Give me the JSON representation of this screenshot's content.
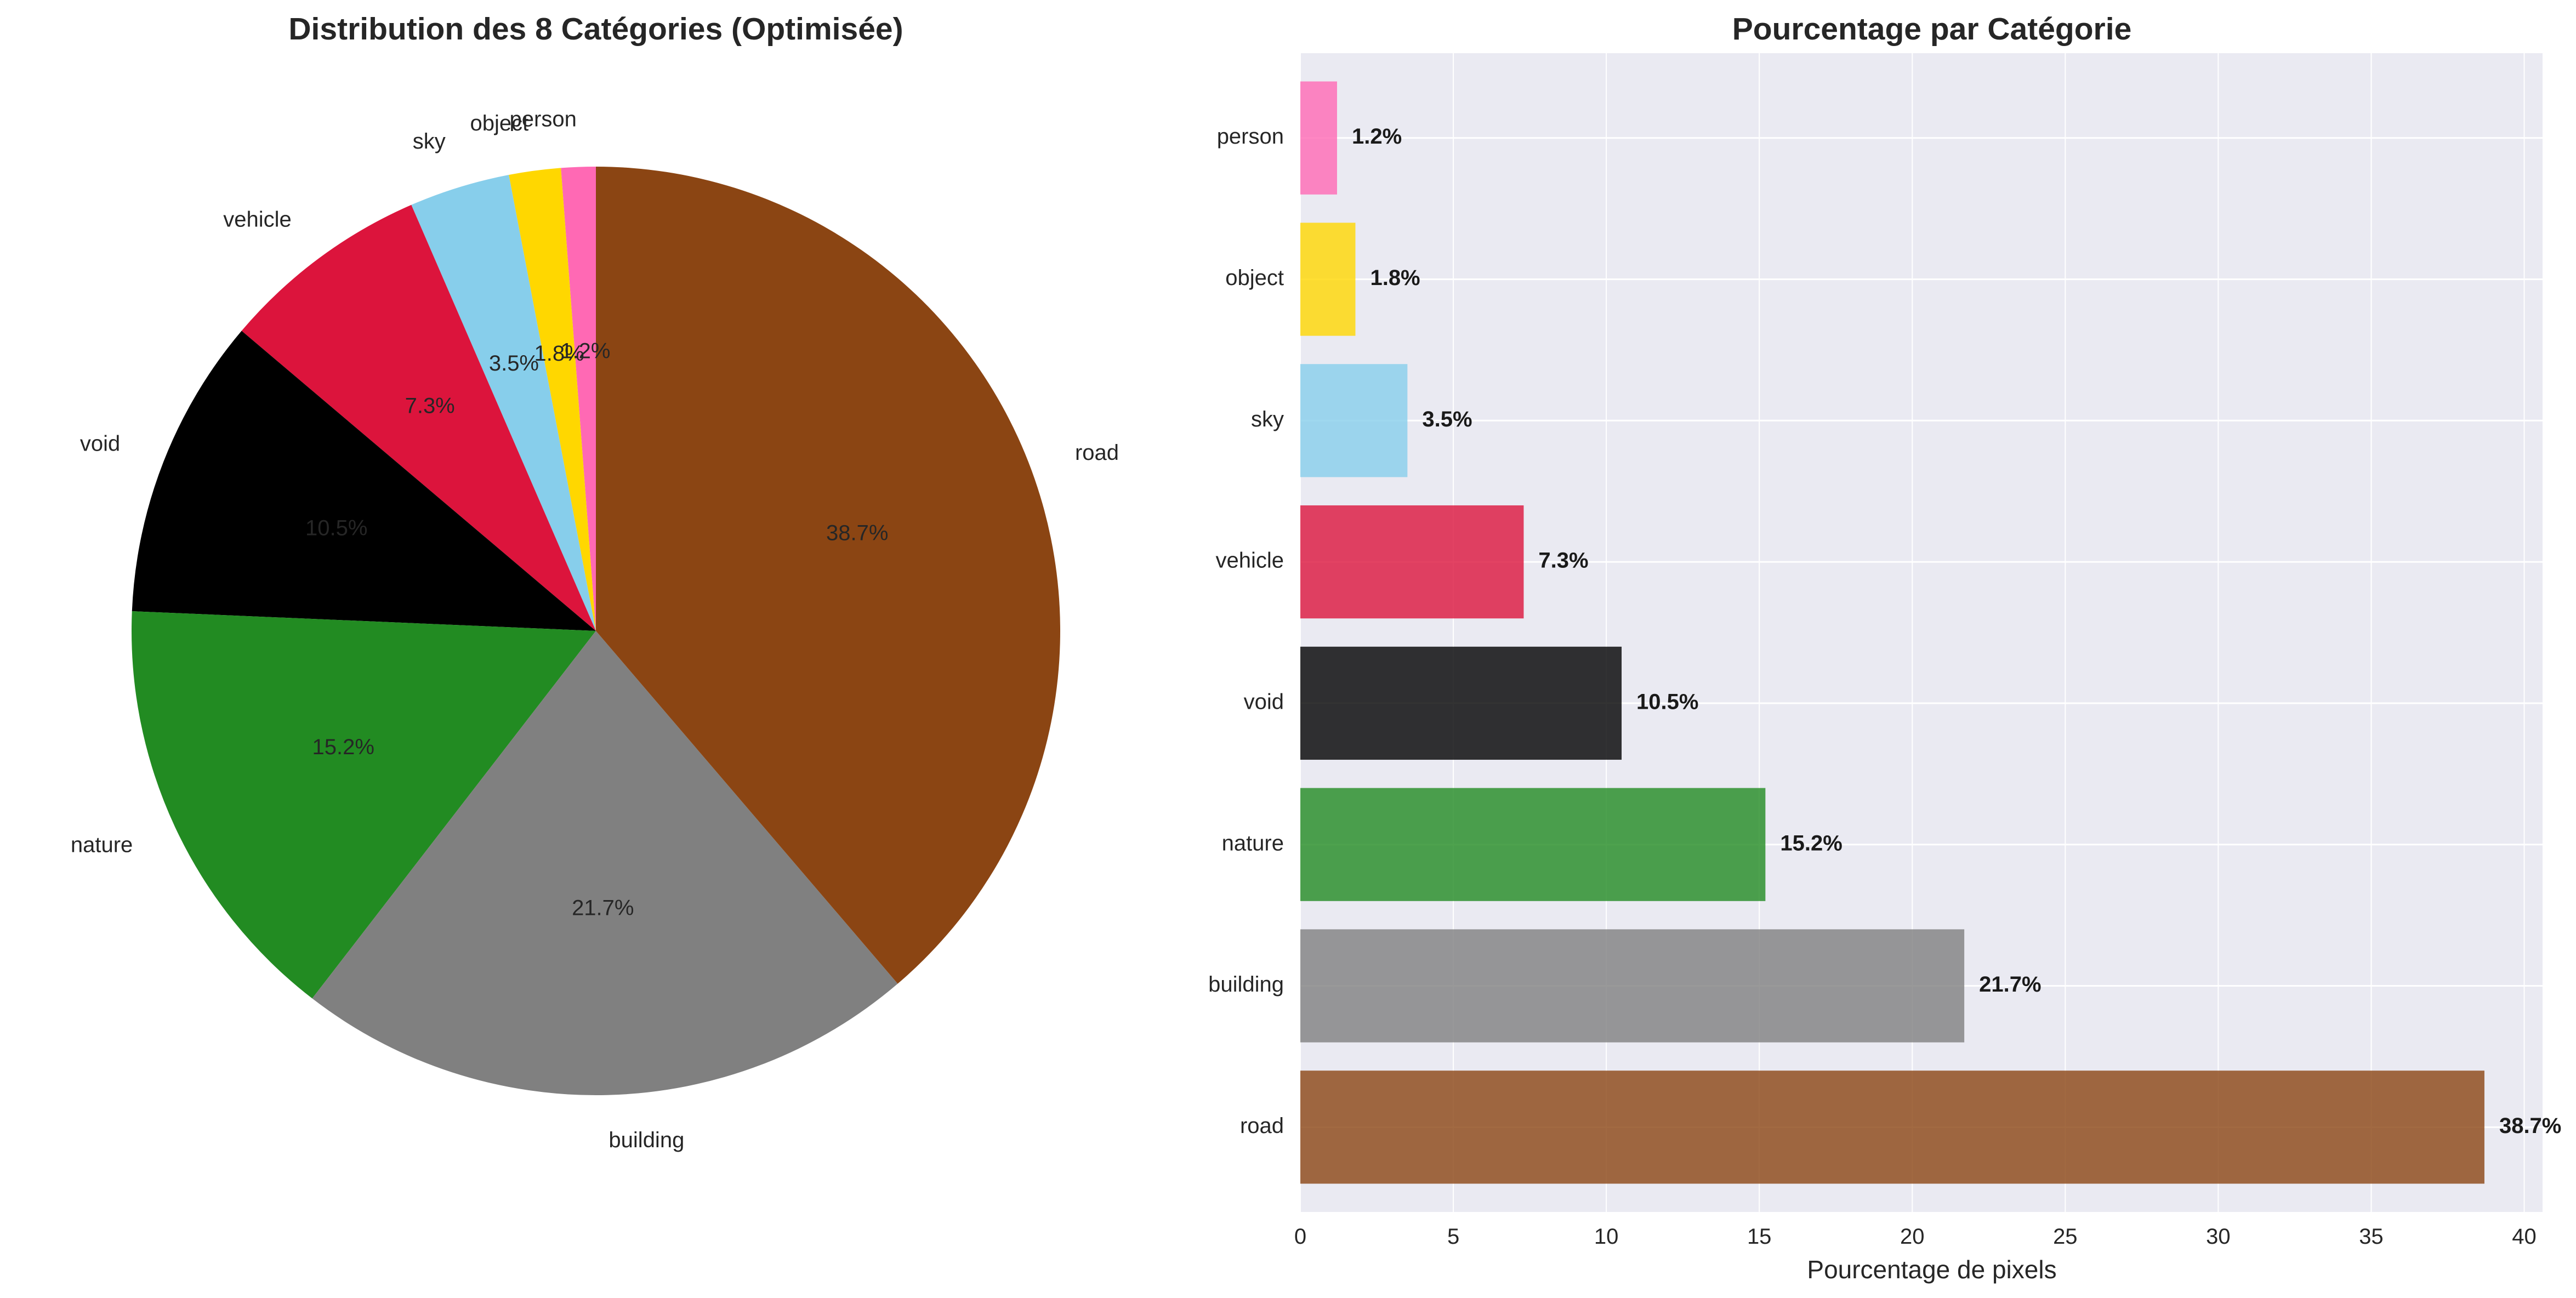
{
  "chart_data": [
    {
      "type": "pie",
      "title": "Distribution des 8 Catégories (Optimisée)",
      "slices": [
        {
          "label": "person",
          "value": 1.2,
          "pct_label": "1.2%",
          "color": "#FF69B4"
        },
        {
          "label": "object",
          "value": 1.8,
          "pct_label": "1.8%",
          "color": "#FFD700"
        },
        {
          "label": "sky",
          "value": 3.5,
          "pct_label": "3.5%",
          "color": "#87CEEB"
        },
        {
          "label": "vehicle",
          "value": 7.3,
          "pct_label": "7.3%",
          "color": "#DC143C"
        },
        {
          "label": "void",
          "value": 10.5,
          "pct_label": "10.5%",
          "color": "#000000"
        },
        {
          "label": "nature",
          "value": 15.2,
          "pct_label": "15.2%",
          "color": "#228B22"
        },
        {
          "label": "building",
          "value": 21.7,
          "pct_label": "21.7%",
          "color": "#808080"
        },
        {
          "label": "road",
          "value": 38.7,
          "pct_label": "38.7%",
          "color": "#8B4513"
        }
      ]
    },
    {
      "type": "bar",
      "orientation": "horizontal",
      "title": "Pourcentage par Catégorie",
      "xlabel": "Pourcentage de pixels",
      "ylabel": "",
      "categories": [
        "road",
        "building",
        "nature",
        "void",
        "vehicle",
        "sky",
        "object",
        "person"
      ],
      "values": [
        38.7,
        21.7,
        15.2,
        10.5,
        7.3,
        3.5,
        1.8,
        1.2
      ],
      "value_labels": [
        "38.7%",
        "21.7%",
        "15.2%",
        "10.5%",
        "7.3%",
        "3.5%",
        "1.8%",
        "1.2%"
      ],
      "colors": [
        "#8B4513",
        "#808080",
        "#228B22",
        "#000000",
        "#DC143C",
        "#87CEEB",
        "#FFD700",
        "#FF69B4"
      ],
      "xlim": [
        0,
        40.6
      ],
      "xticks": [
        0,
        5,
        10,
        15,
        20,
        25,
        30,
        35,
        40
      ],
      "grid": true,
      "background": "#EAEAF2"
    }
  ]
}
